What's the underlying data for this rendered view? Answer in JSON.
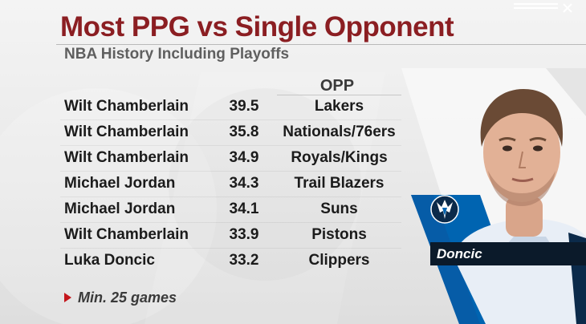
{
  "header": {
    "title": "Most PPG vs Single Opponent",
    "subtitle": "NBA History Including Playoffs"
  },
  "table": {
    "opp_header": "OPP",
    "rows": [
      {
        "player": "Wilt Chamberlain",
        "ppg": "39.5",
        "opp": "Lakers"
      },
      {
        "player": "Wilt Chamberlain",
        "ppg": "35.8",
        "opp": "Nationals/76ers"
      },
      {
        "player": "Wilt Chamberlain",
        "ppg": "34.9",
        "opp": "Royals/Kings"
      },
      {
        "player": "Michael Jordan",
        "ppg": "34.3",
        "opp": "Trail Blazers"
      },
      {
        "player": "Michael Jordan",
        "ppg": "34.1",
        "opp": "Suns"
      },
      {
        "player": "Wilt Chamberlain",
        "ppg": "33.9",
        "opp": "Pistons"
      },
      {
        "player": "Luka Doncic",
        "ppg": "33.2",
        "opp": "Clippers"
      }
    ]
  },
  "footnote": {
    "text": "Min. 25 games"
  },
  "player_card": {
    "name": "Doncic",
    "team_logo": "mavericks-logo",
    "colors": {
      "team_blue": "#0064b1",
      "jersey_navy": "#0b2a4a",
      "title_red": "#8b1e22",
      "accent_red": "#c4161c"
    }
  }
}
